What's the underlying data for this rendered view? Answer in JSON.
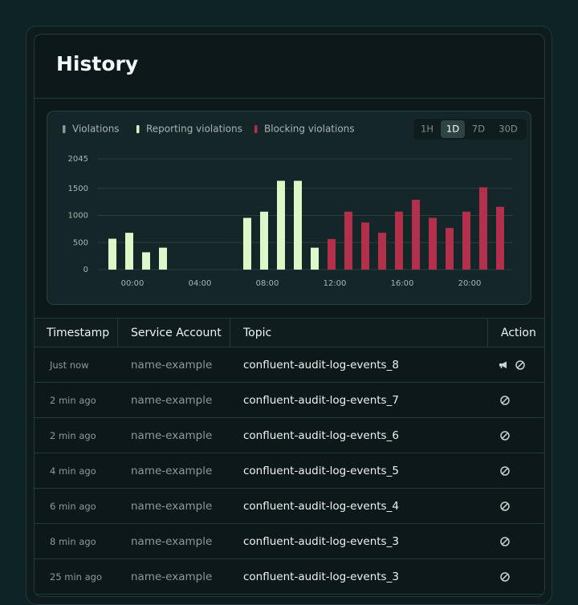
{
  "header": {
    "title": "History"
  },
  "chart_data": {
    "type": "bar",
    "categories": [
      null,
      "00:00",
      null,
      null,
      null,
      "04:00",
      null,
      null,
      null,
      "08:00",
      null,
      null,
      null,
      "12:00",
      null,
      null,
      null,
      "16:00",
      null,
      null,
      null,
      "20:00",
      null,
      null
    ],
    "series": [
      {
        "name": "Violations",
        "color": "#8a9696",
        "values": [
          null,
          null,
          null,
          null,
          null,
          null,
          null,
          null,
          null,
          null,
          null,
          null,
          null,
          null,
          null,
          null,
          null,
          null,
          null,
          null,
          null,
          null,
          null,
          null
        ]
      },
      {
        "name": "Reporting violations",
        "color": "#dcf8c8",
        "values": [
          570,
          680,
          320,
          405,
          null,
          null,
          null,
          null,
          955,
          1070,
          1640,
          1640,
          405,
          null,
          null,
          null,
          null,
          null,
          null,
          null,
          null,
          null,
          null,
          null
        ]
      },
      {
        "name": "Blocking violations",
        "color": "#b3304c",
        "values": [
          null,
          null,
          null,
          null,
          null,
          null,
          null,
          null,
          null,
          null,
          null,
          null,
          null,
          565,
          1070,
          870,
          680,
          1070,
          1290,
          955,
          770,
          1070,
          1520,
          1160
        ]
      }
    ],
    "ylim": [
      0,
      2045
    ],
    "yticks": [
      0,
      500,
      1000,
      1500,
      2045
    ],
    "grid": true,
    "ranges": [
      "1H",
      "1D",
      "7D",
      "30D"
    ],
    "selected": "1D"
  },
  "table": {
    "columns": [
      "Timestamp",
      "Service Account",
      "Topic",
      "Action"
    ],
    "rows": [
      [
        "Just now",
        "name-example",
        "confluent-audit-log-events_8"
      ],
      [
        "2 min ago",
        "name-example",
        "confluent-audit-log-events_7"
      ],
      [
        "2 min ago",
        "name-example",
        "confluent-audit-log-events_6"
      ],
      [
        "4 min ago",
        "name-example",
        "confluent-audit-log-events_5"
      ],
      [
        "6 min ago",
        "name-example",
        "confluent-audit-log-events_4"
      ],
      [
        "8 min ago",
        "name-example",
        "confluent-audit-log-events_3"
      ],
      [
        "25 min ago",
        "name-example",
        "confluent-audit-log-events_3"
      ]
    ]
  }
}
